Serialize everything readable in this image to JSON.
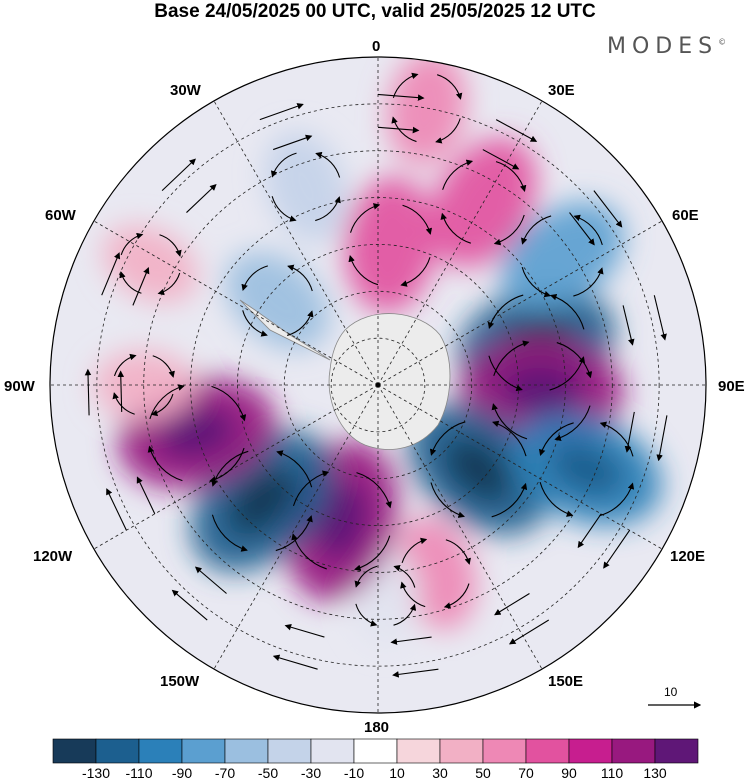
{
  "title": "Base 24/05/2025 00 UTC, valid 25/05/2025 12 UTC",
  "brand": "MODES",
  "brand_mark": "©",
  "longitude_labels": {
    "lon_0": "0",
    "lon_30e": "30E",
    "lon_60e": "60E",
    "lon_90e": "90E",
    "lon_120e": "120E",
    "lon_150e": "150E",
    "lon_180": "180",
    "lon_150w": "150W",
    "lon_120w": "120W",
    "lon_90w": "90W",
    "lon_60w": "60W",
    "lon_30w": "30W"
  },
  "vector_reference": {
    "label": "10"
  },
  "colorbar": {
    "colors": [
      "#173a59",
      "#1c5f8f",
      "#2b80b9",
      "#5b9fd0",
      "#9bbfe0",
      "#c4d3e9",
      "#e2e4f0",
      "#ffffff",
      "#f6d6dc",
      "#f2b0c5",
      "#ee88b5",
      "#e2529f",
      "#c71e8f",
      "#98197f",
      "#5f1777"
    ],
    "tick_labels": [
      "-130",
      "-110",
      "-90",
      "-70",
      "-50",
      "-30",
      "-10",
      "10",
      "30",
      "50",
      "70",
      "90",
      "110",
      "130"
    ]
  },
  "anomaly_cells": [
    {
      "lon": 75,
      "lat": -55,
      "value": -115
    },
    {
      "lon": 92,
      "lat": -55,
      "value": 120
    },
    {
      "lon": 130,
      "lat": -62,
      "value": -115
    },
    {
      "lon": 112,
      "lat": -42,
      "value": -110
    },
    {
      "lon": 163,
      "lat": -48,
      "value": 50
    },
    {
      "lon": 178,
      "lat": -45,
      "value": -30
    },
    {
      "lon": -165,
      "lat": -60,
      "value": 120
    },
    {
      "lon": -135,
      "lat": -55,
      "value": -125
    },
    {
      "lon": -105,
      "lat": -50,
      "value": 115
    },
    {
      "lon": -90,
      "lat": -40,
      "value": 30
    },
    {
      "lon": -50,
      "lat": -62,
      "value": -55
    },
    {
      "lon": -62,
      "lat": -35,
      "value": 30
    },
    {
      "lon": -20,
      "lat": -45,
      "value": -50
    },
    {
      "lon": 5,
      "lat": -60,
      "value": 80
    },
    {
      "lon": 30,
      "lat": -45,
      "value": 85
    },
    {
      "lon": 10,
      "lat": -30,
      "value": 50
    },
    {
      "lon": 55,
      "lat": -42,
      "value": -80
    }
  ]
}
